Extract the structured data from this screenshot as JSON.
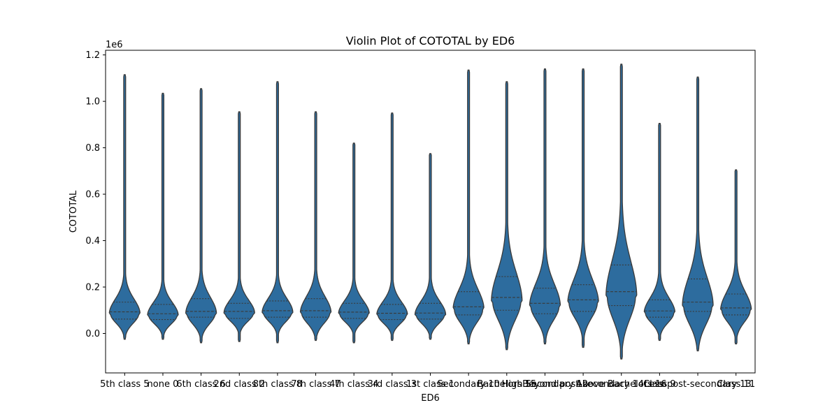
{
  "chart_data": {
    "type": "violin",
    "title": "Violin Plot of COTOTAL by ED6",
    "xlabel": "ED6",
    "ylabel": "COTOTAL",
    "y_offset_text": "1e6",
    "y_scale": 1000000,
    "ylim": [
      -0.17,
      1.22
    ],
    "yticks": [
      0.0,
      0.2,
      0.4,
      0.6,
      0.8,
      1.0,
      1.2
    ],
    "ytick_labels": [
      "0.0",
      "0.2",
      "0.4",
      "0.6",
      "0.8",
      "1.0",
      "1.2"
    ],
    "grid": false,
    "color": "#2d6c9e",
    "categories": [
      "5th class 5",
      "none 0",
      "6th class 6",
      "2nd class 2",
      "8th class 8",
      "7th class 7",
      "4th class 4",
      "3rd class 3",
      "1st class 1",
      "Secondary 10",
      "Bachelors 15",
      "High Secondary 12",
      "Beyond post-secondary 14",
      "Above Bachelors 16",
      "Class 9",
      "Less post-secondary 13",
      "Class 11"
    ],
    "series": [
      {
        "category": "5th class 5",
        "min": -0.025,
        "max": 1.115,
        "q1": 0.062,
        "median": 0.093,
        "q3": 0.135
      },
      {
        "category": "none 0",
        "min": -0.025,
        "max": 1.035,
        "q1": 0.06,
        "median": 0.085,
        "q3": 0.125
      },
      {
        "category": "6th class 6",
        "min": -0.04,
        "max": 1.055,
        "q1": 0.07,
        "median": 0.095,
        "q3": 0.15
      },
      {
        "category": "2nd class 2",
        "min": -0.035,
        "max": 0.955,
        "q1": 0.065,
        "median": 0.095,
        "q3": 0.13
      },
      {
        "category": "8th class 8",
        "min": -0.04,
        "max": 1.085,
        "q1": 0.07,
        "median": 0.098,
        "q3": 0.14
      },
      {
        "category": "7th class 7",
        "min": -0.03,
        "max": 0.955,
        "q1": 0.07,
        "median": 0.098,
        "q3": 0.15
      },
      {
        "category": "4th class 4",
        "min": -0.04,
        "max": 0.82,
        "q1": 0.065,
        "median": 0.092,
        "q3": 0.13
      },
      {
        "category": "3rd class 3",
        "min": -0.03,
        "max": 0.95,
        "q1": 0.06,
        "median": 0.087,
        "q3": 0.125
      },
      {
        "category": "1st class 1",
        "min": -0.025,
        "max": 0.775,
        "q1": 0.062,
        "median": 0.088,
        "q3": 0.13
      },
      {
        "category": "Secondary 10",
        "min": -0.045,
        "max": 1.135,
        "q1": 0.08,
        "median": 0.115,
        "q3": 0.18
      },
      {
        "category": "Bachelors 15",
        "min": -0.07,
        "max": 1.085,
        "q1": 0.1,
        "median": 0.155,
        "q3": 0.245
      },
      {
        "category": "High Secondary 12",
        "min": -0.045,
        "max": 1.14,
        "q1": 0.085,
        "median": 0.13,
        "q3": 0.195
      },
      {
        "category": "Beyond post-secondary 14",
        "min": -0.06,
        "max": 1.14,
        "q1": 0.095,
        "median": 0.145,
        "q3": 0.21
      },
      {
        "category": "Above Bachelors 16",
        "min": -0.11,
        "max": 1.16,
        "q1": 0.12,
        "median": 0.18,
        "q3": 0.295
      },
      {
        "category": "Class 9",
        "min": -0.03,
        "max": 0.905,
        "q1": 0.07,
        "median": 0.097,
        "q3": 0.145
      },
      {
        "category": "Less post-secondary 13",
        "min": -0.075,
        "max": 1.105,
        "q1": 0.095,
        "median": 0.135,
        "q3": 0.235
      },
      {
        "category": "Class 11",
        "min": -0.045,
        "max": 0.705,
        "q1": 0.08,
        "median": 0.11,
        "q3": 0.17
      }
    ]
  }
}
